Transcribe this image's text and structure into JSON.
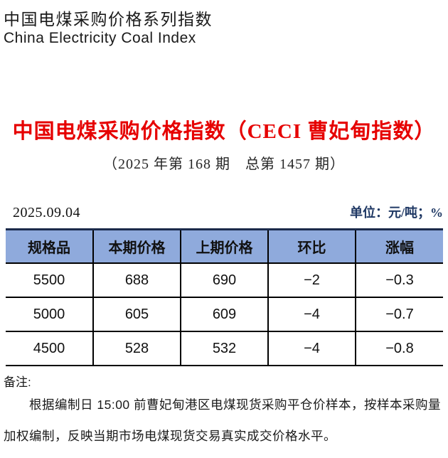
{
  "brand": {
    "title_zh": "中国电煤采购价格系列指数",
    "title_en": "China Electricity Coal Index"
  },
  "heading": {
    "title": "中国电煤采购价格指数（CECI 曹妃甸指数）",
    "issue": "（2025 年第 168 期　总第 1457 期）"
  },
  "meta": {
    "date": "2025.09.04",
    "unit": "单位：元/吨；%"
  },
  "table": {
    "headers": [
      "规格品",
      "本期价格",
      "上期价格",
      "环比",
      "涨幅"
    ],
    "rows": [
      {
        "spec": "5500",
        "current": "688",
        "previous": "690",
        "change": "−2",
        "pct": "−0.3"
      },
      {
        "spec": "5000",
        "current": "605",
        "previous": "609",
        "change": "−4",
        "pct": "−0.7"
      },
      {
        "spec": "4500",
        "current": "528",
        "previous": "532",
        "change": "−4",
        "pct": "−0.8"
      }
    ]
  },
  "notes": {
    "label": "备注:",
    "line1": "根据编制日 15:00 前曹妃甸港区电煤现货采购平仓价样本，按样本采购量",
    "line2": "加权编制，反映当期市场电煤现货交易真实成交价格水平。"
  },
  "colors": {
    "accent_red": "#e60000",
    "header_bg": "#8faadc",
    "unit_navy": "#1f3864",
    "border_navy": "#1b2a4a",
    "negative_green": "#00b050"
  }
}
